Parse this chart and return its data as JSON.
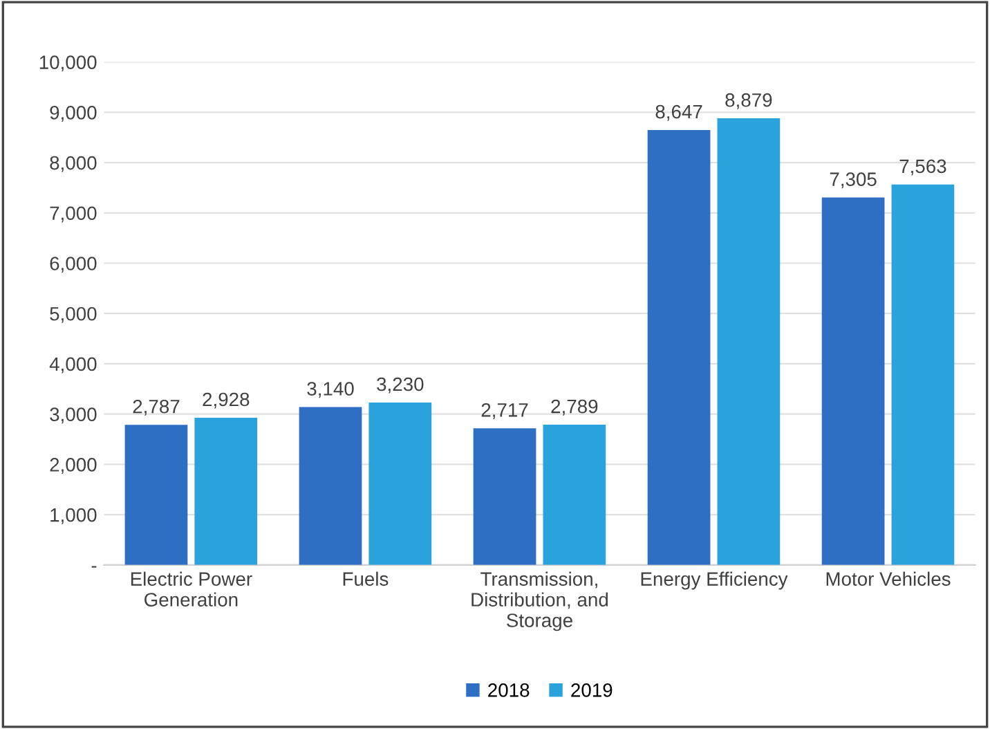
{
  "chart_data": {
    "type": "bar",
    "categories": [
      "Electric Power\nGeneration",
      "Fuels",
      "Transmission,\nDistribution, and\nStorage",
      "Energy Efficiency",
      "Motor Vehicles"
    ],
    "series": [
      {
        "name": "2018",
        "color": "#2e6fc4",
        "values": [
          2787,
          3140,
          2717,
          8647,
          7305
        ],
        "value_labels": [
          "2,787",
          "3,140",
          "2,717",
          "8,647",
          "7,305"
        ]
      },
      {
        "name": "2019",
        "color": "#2aa3dc",
        "values": [
          2928,
          3230,
          2789,
          8879,
          7563
        ],
        "value_labels": [
          "2,928",
          "3,230",
          "2,789",
          "8,879",
          "7,563"
        ]
      }
    ],
    "ylim": [
      0,
      10000
    ],
    "yticks": [
      {
        "value": 0,
        "label": "-"
      },
      {
        "value": 1000,
        "label": "1,000"
      },
      {
        "value": 2000,
        "label": "2,000"
      },
      {
        "value": 3000,
        "label": "3,000"
      },
      {
        "value": 4000,
        "label": "4,000"
      },
      {
        "value": 5000,
        "label": "5,000"
      },
      {
        "value": 6000,
        "label": "6,000"
      },
      {
        "value": 7000,
        "label": "7,000"
      },
      {
        "value": 8000,
        "label": "8,000"
      },
      {
        "value": 9000,
        "label": "9,000"
      },
      {
        "value": 10000,
        "label": "10,000"
      }
    ],
    "grid": "y",
    "legend": "bottom"
  }
}
